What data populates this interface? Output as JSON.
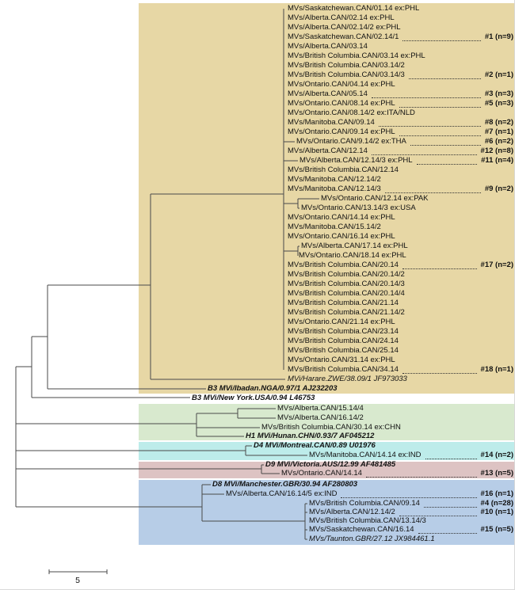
{
  "figure": {
    "type": "phylogenetic-tree",
    "scale_bar_label": "5",
    "line_color": "#4a4a4a"
  },
  "blocks": [
    {
      "id": "b3",
      "genotype": "B3",
      "color": "#e7d7a5"
    },
    {
      "id": "h1",
      "genotype": "H1",
      "color": "#d8e9ce"
    },
    {
      "id": "d4",
      "genotype": "D4",
      "color": "#bdecea"
    },
    {
      "id": "d9",
      "genotype": "D9",
      "color": "#ddc3c3"
    },
    {
      "id": "d8",
      "genotype": "D8",
      "color": "#b7cde7"
    }
  ],
  "taxa": [
    {
      "label": "MVs/Saskatchewan.CAN/01.14 ex:PHL"
    },
    {
      "label": "MVs/Alberta.CAN/02.14 ex:PHL"
    },
    {
      "label": "MVs/Alberta.CAN/02.14/2 ex:PHL"
    },
    {
      "label": "MVs/Saskatchewan.CAN/02.14/1",
      "cluster": "#1 (n=9)"
    },
    {
      "label": "MVs/Alberta.CAN/03.14"
    },
    {
      "label": "MVs/British Columbia.CAN/03.14 ex:PHL"
    },
    {
      "label": "MVs/British Columbia.CAN/03.14/2"
    },
    {
      "label": "MVs/British Columbia.CAN/03.14/3",
      "cluster": "#2 (n=1)"
    },
    {
      "label": "MVs/Ontario.CAN/04.14 ex:PHL"
    },
    {
      "label": "MVs/Alberta.CAN/05.14",
      "cluster": "#3 (n=3)"
    },
    {
      "label": "MVs/Ontario.CAN/08.14 ex:PHL",
      "cluster": "#5 (n=3)"
    },
    {
      "label": "MVs/Ontario.CAN/08.14/2 ex:ITA/NLD"
    },
    {
      "label": "MVs/Manitoba.CAN/09.14",
      "cluster": "#8 (n=2)"
    },
    {
      "label": "MVs/Ontario.CAN/09.14 ex:PHL",
      "cluster": "#7 (n=1)"
    },
    {
      "label": "MVs/Ontario.CAN/9.14/2 ex:THA",
      "cluster": "#6 (n=2)"
    },
    {
      "label": "MVs/Alberta.CAN/12.14",
      "cluster": "#12 (n=8)"
    },
    {
      "label": "MVs/Alberta.CAN/12.14/3 ex:PHL",
      "cluster": "#11 (n=4)"
    },
    {
      "label": "MVs/British Columbia.CAN/12.14"
    },
    {
      "label": "MVs/Manitoba.CAN/12.14/2"
    },
    {
      "label": "MVs/Manitoba.CAN/12.14/3",
      "cluster": "#9 (n=2)"
    },
    {
      "label": "MVs/Ontario.CAN/12.14 ex:PAK"
    },
    {
      "label": "MVs/Ontario.CAN/13.14/3 ex:USA"
    },
    {
      "label": "MVs/Ontario.CAN/14.14 ex:PHL"
    },
    {
      "label": "MVs/Manitoba.CAN/15.14/2"
    },
    {
      "label": "MVs/Ontario.CAN/16.14 ex:PHL"
    },
    {
      "label": "MVs/Alberta.CAN/17.14 ex:PHL"
    },
    {
      "label": "MVs/Ontario.CAN/18.14 ex:PHL"
    },
    {
      "label": "MVs/British Columbia.CAN/20.14",
      "cluster": "#17 (n=2)"
    },
    {
      "label": "MVs/British Columbia.CAN/20.14/2"
    },
    {
      "label": "MVs/British Columbia.CAN/20.14/3"
    },
    {
      "label": "MVs/British Columbia.CAN/20.14/4"
    },
    {
      "label": "MVs/British Columbia.CAN/21.14"
    },
    {
      "label": "MVs/British Columbia.CAN/21.14/2"
    },
    {
      "label": "MVs/Ontario.CAN/21.14 ex:PHL"
    },
    {
      "label": "MVs/British Columbia.CAN/23.14"
    },
    {
      "label": "MVs/British Columbia.CAN/24.14"
    },
    {
      "label": "MVs/British Columbia.CAN/25.14"
    },
    {
      "label": "MVs/Ontario.CAN/31.14 ex:PHL"
    },
    {
      "label": "MVs/British Columbia.CAN/34.14",
      "cluster": "#18 (n=1)"
    },
    {
      "label": "MVi/Harare.ZWE/38.09/1 JF973033",
      "style": "italic"
    },
    {
      "label": "B3 MVi/Ibadan.NGA/0.97/1 AJ232203",
      "style": "bolditalic"
    },
    {
      "label": "B3 MVi/New York.USA/0.94 L46753",
      "style": "bolditalic"
    },
    {
      "label": "MVs/Alberta.CAN/15.14/4"
    },
    {
      "label": "MVs/Alberta.CAN/16.14/2"
    },
    {
      "label": "MVs/British Columbia.CAN/30.14 ex:CHN"
    },
    {
      "label": "H1 MVi/Hunan.CHN/0.93/7 AF045212",
      "style": "bolditalic"
    },
    {
      "label": "D4 MVi/Montreal.CAN/0.89 U01976",
      "style": "bolditalic"
    },
    {
      "label": "MVs/Manitoba.CAN/14.14 ex:IND",
      "cluster": "#14 (n=2)"
    },
    {
      "label": "D9 MVi/Victoria.AUS/12.99 AF481485",
      "style": "bolditalic"
    },
    {
      "label": "MVs/Ontario.CAN/14.14",
      "cluster": "#13 (n=5)"
    },
    {
      "label": "D8 MVi/Manchester.GBR/30.94 AF280803",
      "style": "bolditalic"
    },
    {
      "label": "MVs/Alberta.CAN/16.14/5 ex:IND",
      "cluster": "#16 (n=1)"
    },
    {
      "label": "MVs/British Columbia.CAN/09.14",
      "cluster": "#4 (n=28)"
    },
    {
      "label": "MVs/Alberta.CAN/12.14/2",
      "cluster": "#10 (n=1)"
    },
    {
      "label": "MVs/British Columbia.CAN/13.14/3"
    },
    {
      "label": "MVs/Saskatchewan.CAN/16.14",
      "cluster": "#15 (n=5)"
    },
    {
      "label": "MVs/Taunton.GBR/27.12 JX984461.1",
      "style": "italic"
    }
  ]
}
